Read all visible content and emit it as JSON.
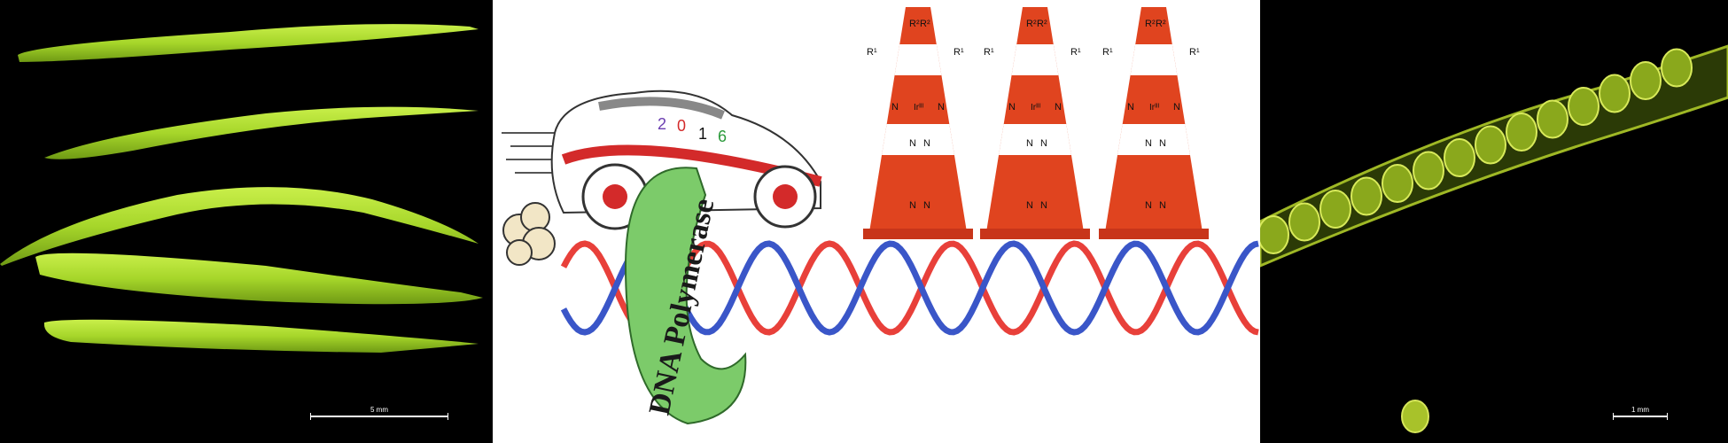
{
  "left_panel": {
    "scale_label": "5 mm"
  },
  "center_panel": {
    "car_numbers": [
      "2",
      "0",
      "1",
      "6"
    ],
    "enzyme_label": "DNA Polymerase",
    "cone_labels": {
      "r1": "R¹",
      "r2": "R²",
      "n": "N",
      "ir": "Irᴵᴵᴵ"
    },
    "colors": {
      "cone_orange": "#e0441f",
      "cone_white": "#ffffff",
      "enzyme_green": "#7ccb6a",
      "dna_red": "#e8403a",
      "dna_blue": "#3a56c8"
    }
  },
  "right_panel": {
    "scale_label": "1 mm"
  }
}
